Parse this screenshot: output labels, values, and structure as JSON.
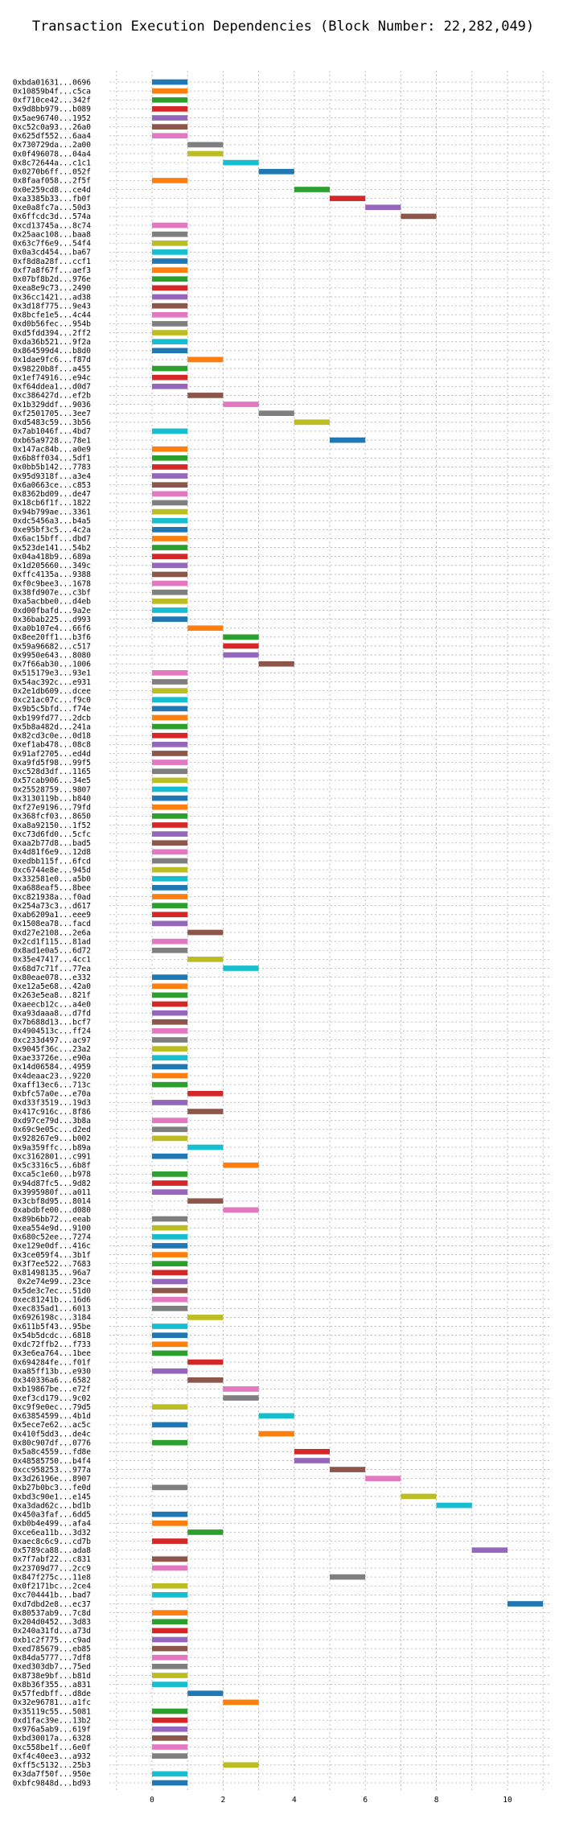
{
  "chart_data": {
    "type": "bar",
    "orientation": "horizontal-gantt",
    "title": "Transaction Execution Dependencies (Block Number: 22,282,049)",
    "xlabel": "",
    "ylabel": "",
    "xlim": [
      -1.2,
      11.2
    ],
    "xticks": [
      0,
      2,
      4,
      6,
      8,
      10
    ],
    "grid": true,
    "palette": [
      "#1f77b4",
      "#ff7f0e",
      "#2ca02c",
      "#d62728",
      "#9467bd",
      "#8c564b",
      "#e377c2",
      "#7f7f7f",
      "#bcbd22",
      "#17becf"
    ],
    "transactions": [
      {
        "label": "0xbda01631...0696",
        "start": 0
      },
      {
        "label": "0x10859b4f...c5ca",
        "start": 0
      },
      {
        "label": "0xf710ce42...342f",
        "start": 0
      },
      {
        "label": "0x9d8bb979...b089",
        "start": 0
      },
      {
        "label": "0x5ae96740...1952",
        "start": 0
      },
      {
        "label": "0xc52c0a93...26a0",
        "start": 0
      },
      {
        "label": "0x625df552...6aa4",
        "start": 0
      },
      {
        "label": "0x730729da...2a00",
        "start": 1
      },
      {
        "label": "0x0f496078...04a4",
        "start": 1
      },
      {
        "label": "0x8c72644a...c1c1",
        "start": 2
      },
      {
        "label": "0x0270b6ff...052f",
        "start": 3
      },
      {
        "label": "0x8faaf058...2f5f",
        "start": 0
      },
      {
        "label": "0x0e259cd8...ce4d",
        "start": 4
      },
      {
        "label": "0xa3385b33...fb0f",
        "start": 5
      },
      {
        "label": "0xe0a8fc7a...50d3",
        "start": 6
      },
      {
        "label": "0x6ffcdc3d...574a",
        "start": 7
      },
      {
        "label": "0xcd13745a...8c74",
        "start": 0
      },
      {
        "label": "0x25aac108...baa8",
        "start": 0
      },
      {
        "label": "0x63c7f6e9...54f4",
        "start": 0
      },
      {
        "label": "0x0a3cd454...ba67",
        "start": 0
      },
      {
        "label": "0xf8d8a28f...ccf1",
        "start": 0
      },
      {
        "label": "0xf7a8f67f...aef3",
        "start": 0
      },
      {
        "label": "0x07bf8b2d...976e",
        "start": 0
      },
      {
        "label": "0xea8e9c73...2490",
        "start": 0
      },
      {
        "label": "0x36cc1421...ad38",
        "start": 0
      },
      {
        "label": "0x3d18f775...9e43",
        "start": 0
      },
      {
        "label": "0x8bcfe1e5...4c44",
        "start": 0
      },
      {
        "label": "0xd0b56fec...954b",
        "start": 0
      },
      {
        "label": "0xd5fdd394...2ff2",
        "start": 0
      },
      {
        "label": "0xda36b521...9f2a",
        "start": 0
      },
      {
        "label": "0x864599d4...b8d0",
        "start": 0
      },
      {
        "label": "0x1dae9fc6...f87d",
        "start": 1
      },
      {
        "label": "0x98220b8f...a455",
        "start": 0
      },
      {
        "label": "0x1ef74916...e94c",
        "start": 0
      },
      {
        "label": "0xf64ddea1...d0d7",
        "start": 0
      },
      {
        "label": "0xc386427d...ef2b",
        "start": 1
      },
      {
        "label": "0x1b329ddf...9036",
        "start": 2
      },
      {
        "label": "0xf2501705...3ee7",
        "start": 3
      },
      {
        "label": "0xd5483c59...3b56",
        "start": 4
      },
      {
        "label": "0x7ab1046f...4bd7",
        "start": 0
      },
      {
        "label": "0xb65a9728...78e1",
        "start": 5
      },
      {
        "label": "0x147ac84b...a0e9",
        "start": 0
      },
      {
        "label": "0x6b8ff034...5df1",
        "start": 0
      },
      {
        "label": "0x0bb5b142...7783",
        "start": 0
      },
      {
        "label": "0x95d9318f...a3e4",
        "start": 0
      },
      {
        "label": "0x6a0663ce...c853",
        "start": 0
      },
      {
        "label": "0x8362bd09...de47",
        "start": 0
      },
      {
        "label": "0x18cb6f1f...1822",
        "start": 0
      },
      {
        "label": "0x94b799ae...3361",
        "start": 0
      },
      {
        "label": "0xdc5456a3...b4a5",
        "start": 0
      },
      {
        "label": "0xe95bf3c5...4c2a",
        "start": 0
      },
      {
        "label": "0x6ac15bff...dbd7",
        "start": 0
      },
      {
        "label": "0x523de141...54b2",
        "start": 0
      },
      {
        "label": "0x04a418b9...689a",
        "start": 0
      },
      {
        "label": "0x1d205660...349c",
        "start": 0
      },
      {
        "label": "0xffc4135a...9388",
        "start": 0
      },
      {
        "label": "0xf0c9bee3...1678",
        "start": 0
      },
      {
        "label": "0x38fd907e...c3bf",
        "start": 0
      },
      {
        "label": "0xa5acbbe0...d4eb",
        "start": 0
      },
      {
        "label": "0xd00fbafd...9a2e",
        "start": 0
      },
      {
        "label": "0x36bab225...d993",
        "start": 0
      },
      {
        "label": "0xa0b107e4...66f6",
        "start": 1
      },
      {
        "label": "0x8ee20ff1...b3f6",
        "start": 2
      },
      {
        "label": "0x59a96682...c517",
        "start": 2
      },
      {
        "label": "0x9950e643...8080",
        "start": 2
      },
      {
        "label": "0x7f66ab30...1006",
        "start": 3
      },
      {
        "label": "0x515179e3...93e1",
        "start": 0
      },
      {
        "label": "0x54ac392c...e931",
        "start": 0
      },
      {
        "label": "0x2e1db609...dcee",
        "start": 0
      },
      {
        "label": "0xc21ac07c...f9c0",
        "start": 0
      },
      {
        "label": "0x9b5c5bfd...f74e",
        "start": 0
      },
      {
        "label": "0xb199fd77...2dcb",
        "start": 0
      },
      {
        "label": "0x5b8a482d...241a",
        "start": 0
      },
      {
        "label": "0x82cd3c0e...0d18",
        "start": 0
      },
      {
        "label": "0xef1ab478...08c8",
        "start": 0
      },
      {
        "label": "0x91af2705...ed4d",
        "start": 0
      },
      {
        "label": "0xa9fd5f98...99f5",
        "start": 0
      },
      {
        "label": "0xc528d3df...1165",
        "start": 0
      },
      {
        "label": "0x57cab906...34e5",
        "start": 0
      },
      {
        "label": "0x25528759...9807",
        "start": 0
      },
      {
        "label": "0x3130119b...b840",
        "start": 0
      },
      {
        "label": "0xf27e9196...79fd",
        "start": 0
      },
      {
        "label": "0x368fcf03...8650",
        "start": 0
      },
      {
        "label": "0xa8a92150...1f52",
        "start": 0
      },
      {
        "label": "0xc73d6fd0...5cfc",
        "start": 0
      },
      {
        "label": "0xaa2b77d8...bad5",
        "start": 0
      },
      {
        "label": "0x4d81f6e9...12d8",
        "start": 0
      },
      {
        "label": "0xedbb115f...6fcd",
        "start": 0
      },
      {
        "label": "0xc6744e8e...945d",
        "start": 0
      },
      {
        "label": "0x332581e0...a5b0",
        "start": 0
      },
      {
        "label": "0xa688eaf5...8bee",
        "start": 0
      },
      {
        "label": "0xc821938a...f0ad",
        "start": 0
      },
      {
        "label": "0x254a73c3...d617",
        "start": 0
      },
      {
        "label": "0xab6209a1...eee9",
        "start": 0
      },
      {
        "label": "0x1508ea78...facd",
        "start": 0
      },
      {
        "label": "0xd27e2108...2e6a",
        "start": 1
      },
      {
        "label": "0x2cd1f115...81ad",
        "start": 0
      },
      {
        "label": "0x8ad1e0a5...6d72",
        "start": 0
      },
      {
        "label": "0x35e47417...4cc1",
        "start": 1
      },
      {
        "label": "0x68d7c71f...77ea",
        "start": 2
      },
      {
        "label": "0x80eae078...e332",
        "start": 0
      },
      {
        "label": "0xe12a5e68...42a0",
        "start": 0
      },
      {
        "label": "0x263e5ea8...821f",
        "start": 0
      },
      {
        "label": "0xaeecb12c...a4e0",
        "start": 0
      },
      {
        "label": "0xa93daaa8...d7fd",
        "start": 0
      },
      {
        "label": "0x7b688d13...bcf7",
        "start": 0
      },
      {
        "label": "0x4904513c...ff24",
        "start": 0
      },
      {
        "label": "0xc233d497...ac97",
        "start": 0
      },
      {
        "label": "0x9045f36c...23a2",
        "start": 0
      },
      {
        "label": "0xae33726e...e90a",
        "start": 0
      },
      {
        "label": "0x14d06584...4959",
        "start": 0
      },
      {
        "label": "0x4deaac23...9220",
        "start": 0
      },
      {
        "label": "0xaff13ec6...713c",
        "start": 0
      },
      {
        "label": "0xbfc57a0e...e70a",
        "start": 1
      },
      {
        "label": "0xd33f3519...19d3",
        "start": 0
      },
      {
        "label": "0x417c916c...8f86",
        "start": 1
      },
      {
        "label": "0xd97ce79d...3b8a",
        "start": 0
      },
      {
        "label": "0x69c9e05c...d2ed",
        "start": 0
      },
      {
        "label": "0x928267e9...b002",
        "start": 0
      },
      {
        "label": "0x9a359ffc...b89a",
        "start": 1
      },
      {
        "label": "0xc3162801...c991",
        "start": 0
      },
      {
        "label": "0x5c3316c5...6b8f",
        "start": 2
      },
      {
        "label": "0xca5c1e60...b978",
        "start": 0
      },
      {
        "label": "0x94d87fc5...9d82",
        "start": 0
      },
      {
        "label": "0x3995980f...a011",
        "start": 0
      },
      {
        "label": "0x3cbf8d95...8014",
        "start": 1
      },
      {
        "label": "0xabdbfe00...d080",
        "start": 2
      },
      {
        "label": "0x89b6bb72...eeab",
        "start": 0
      },
      {
        "label": "0xea554e9d...9100",
        "start": 0
      },
      {
        "label": "0x680c52ee...7274",
        "start": 0
      },
      {
        "label": "0xe129e0df...416c",
        "start": 0
      },
      {
        "label": "0x3ce059f4...3b1f",
        "start": 0
      },
      {
        "label": "0x3f7ee522...7683",
        "start": 0
      },
      {
        "label": "0x81498135...96a7",
        "start": 0
      },
      {
        "label": "0x2e74e99...23ce",
        "start": 0
      },
      {
        "label": "0x5de3c7ec...51d0",
        "start": 0
      },
      {
        "label": "0xec81241b...16d6",
        "start": 0
      },
      {
        "label": "0xec835ad1...6013",
        "start": 0
      },
      {
        "label": "0x6926198c...3184",
        "start": 1
      },
      {
        "label": "0x611b5f43...95be",
        "start": 0
      },
      {
        "label": "0x54b5dcdc...6818",
        "start": 0
      },
      {
        "label": "0xdc72ffb2...f733",
        "start": 0
      },
      {
        "label": "0x3e6ea764...1bee",
        "start": 0
      },
      {
        "label": "0x694284fe...f01f",
        "start": 1
      },
      {
        "label": "0xa85ff13b...e930",
        "start": 0
      },
      {
        "label": "0x340336a6...6582",
        "start": 1
      },
      {
        "label": "0xb19867be...e72f",
        "start": 2
      },
      {
        "label": "0xef3cd179...9c02",
        "start": 2
      },
      {
        "label": "0xc9f9e0ec...79d5",
        "start": 0
      },
      {
        "label": "0x63854599...4b1d",
        "start": 3
      },
      {
        "label": "0x5ece7e62...ac5c",
        "start": 0
      },
      {
        "label": "0x410f5dd3...de4c",
        "start": 3
      },
      {
        "label": "0x80c907df...0776",
        "start": 0
      },
      {
        "label": "0x5a8c4559...fd8e",
        "start": 4
      },
      {
        "label": "0x48585750...b4f4",
        "start": 4
      },
      {
        "label": "0xcc958253...977a",
        "start": 5
      },
      {
        "label": "0x3d26196e...8907",
        "start": 6
      },
      {
        "label": "0xb27b0bc3...fe0d",
        "start": 0
      },
      {
        "label": "0xbd3c90e1...e145",
        "start": 7
      },
      {
        "label": "0xa3dad62c...bd1b",
        "start": 8
      },
      {
        "label": "0x450a3faf...6dd5",
        "start": 0
      },
      {
        "label": "0xb0b4e499...afa4",
        "start": 0
      },
      {
        "label": "0xce6ea11b...3d32",
        "start": 1
      },
      {
        "label": "0xaec8c6c9...cd7b",
        "start": 0
      },
      {
        "label": "0x5789ca88...ada8",
        "start": 9
      },
      {
        "label": "0x7f7abf22...c831",
        "start": 0
      },
      {
        "label": "0x23709d77...2cc9",
        "start": 0
      },
      {
        "label": "0x847f275c...11e8",
        "start": 5
      },
      {
        "label": "0x0f2171bc...2ce4",
        "start": 0
      },
      {
        "label": "0xc704441b...bad7",
        "start": 0
      },
      {
        "label": "0xd7dbd2e8...ec37",
        "start": 10
      },
      {
        "label": "0x80537ab9...7c8d",
        "start": 0
      },
      {
        "label": "0x204d0452...3d83",
        "start": 0
      },
      {
        "label": "0x240a31fd...a73d",
        "start": 0
      },
      {
        "label": "0xb1c2f775...c9ad",
        "start": 0
      },
      {
        "label": "0xed785679...eb85",
        "start": 0
      },
      {
        "label": "0x84da5777...7df8",
        "start": 0
      },
      {
        "label": "0xed303db7...75ed",
        "start": 0
      },
      {
        "label": "0x8738e9bf...b81d",
        "start": 0
      },
      {
        "label": "0x8b36f355...a831",
        "start": 0
      },
      {
        "label": "0x57fedbff...d8de",
        "start": 1
      },
      {
        "label": "0x32e96781...a1fc",
        "start": 2
      },
      {
        "label": "0x35119c55...5081",
        "start": 0
      },
      {
        "label": "0xd1fac39e...13b2",
        "start": 0
      },
      {
        "label": "0x976a5ab9...619f",
        "start": 0
      },
      {
        "label": "0xbd30017a...6328",
        "start": 0
      },
      {
        "label": "0xc558be1f...6e0f",
        "start": 0
      },
      {
        "label": "0xf4c40ee3...a932",
        "start": 0
      },
      {
        "label": "0xff5c5132...25b3",
        "start": 2
      },
      {
        "label": "0x3da7f50f...950e",
        "start": 0
      },
      {
        "label": "0xbfc9848d...bd93",
        "start": 0
      }
    ]
  }
}
